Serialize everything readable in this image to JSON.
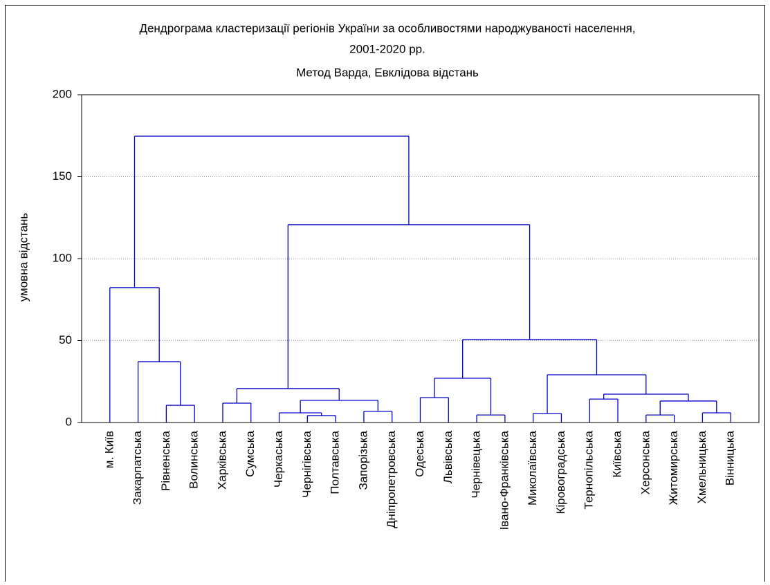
{
  "chart_data": {
    "type": "dendrogram",
    "title": "Дендрограма кластеризації регіонів України за особливостями народжуваності населення,",
    "title_line2": "2001-2020 рр.",
    "subtitle": "Метод Варда, Евклідова відстань",
    "ylabel": "умовна відстань",
    "ylim": [
      0,
      200
    ],
    "yticks": [
      0,
      50,
      100,
      150,
      200
    ],
    "grid": true,
    "color": "#0000c8",
    "tree": {
      "height": 174.7,
      "children": [
        {
          "height": 82.3,
          "children": [
            {
              "label": "м. Київ"
            },
            {
              "height": 37.1,
              "children": [
                {
                  "label": "Закарпатська"
                },
                {
                  "height": 10.5,
                  "children": [
                    {
                      "label": "Рівненська"
                    },
                    {
                      "label": "Волинська"
                    }
                  ]
                }
              ]
            }
          ]
        },
        {
          "height": 120.7,
          "children": [
            {
              "height": 20.7,
              "children": [
                {
                  "height": 11.8,
                  "children": [
                    {
                      "label": "Харківська"
                    },
                    {
                      "label": "Сумська"
                    }
                  ]
                },
                {
                  "height": 13.5,
                  "children": [
                    {
                      "height": 5.9,
                      "children": [
                        {
                          "label": "Черкаська"
                        },
                        {
                          "height": 4.2,
                          "children": [
                            {
                              "label": "Чернігівська"
                            },
                            {
                              "label": "Полтавська"
                            }
                          ]
                        }
                      ]
                    },
                    {
                      "height": 6.8,
                      "children": [
                        {
                          "label": "Запорізька"
                        },
                        {
                          "label": "Дніпропетровська"
                        }
                      ]
                    }
                  ]
                }
              ]
            },
            {
              "height": 50.6,
              "children": [
                {
                  "height": 27,
                  "children": [
                    {
                      "height": 15.2,
                      "children": [
                        {
                          "label": "Одеська"
                        },
                        {
                          "label": "Львівська"
                        }
                      ]
                    },
                    {
                      "height": 4.6,
                      "children": [
                        {
                          "label": "Чернівецька"
                        },
                        {
                          "label": "Івано-Франківська"
                        }
                      ]
                    }
                  ]
                },
                {
                  "height": 29.1,
                  "children": [
                    {
                      "height": 5.5,
                      "children": [
                        {
                          "label": "Миколаївська"
                        },
                        {
                          "label": "Кіровоградська"
                        }
                      ]
                    },
                    {
                      "height": 17.3,
                      "children": [
                        {
                          "height": 14.3,
                          "children": [
                            {
                              "label": "Тернопільська"
                            },
                            {
                              "label": "Київська"
                            }
                          ]
                        },
                        {
                          "height": 13.1,
                          "children": [
                            {
                              "height": 4.6,
                              "children": [
                                {
                                  "label": "Херсонська"
                                },
                                {
                                  "label": "Житомирська"
                                }
                              ]
                            },
                            {
                              "height": 5.9,
                              "children": [
                                {
                                  "label": "Хмельницька"
                                },
                                {
                                  "label": "Вінницька"
                                }
                              ]
                            }
                          ]
                        }
                      ]
                    }
                  ]
                }
              ]
            }
          ]
        }
      ]
    }
  }
}
